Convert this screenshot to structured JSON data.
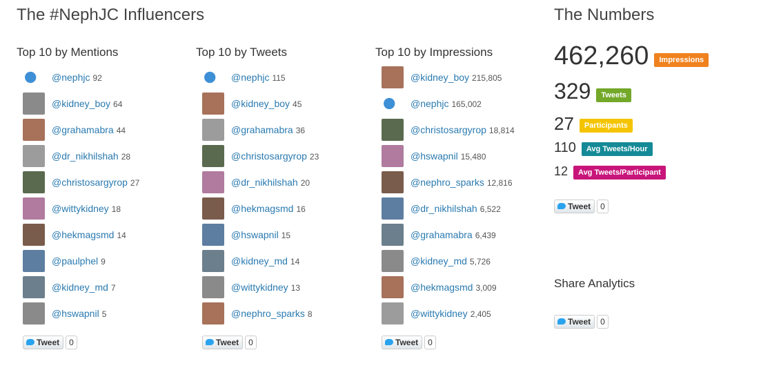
{
  "title": "The #NephJC Influencers",
  "columns": [
    {
      "heading": "Top 10 by Mentions",
      "items": [
        {
          "handle": "@nephjc",
          "count": "92"
        },
        {
          "handle": "@kidney_boy",
          "count": "64"
        },
        {
          "handle": "@grahamabra",
          "count": "44"
        },
        {
          "handle": "@dr_nikhilshah",
          "count": "28"
        },
        {
          "handle": "@christosargyrop",
          "count": "27"
        },
        {
          "handle": "@wittykidney",
          "count": "18"
        },
        {
          "handle": "@hekmagsmd",
          "count": "14"
        },
        {
          "handle": "@paulphel",
          "count": "9"
        },
        {
          "handle": "@kidney_md",
          "count": "7"
        },
        {
          "handle": "@hswapnil",
          "count": "5"
        }
      ],
      "tweet_button": {
        "label": "Tweet",
        "count": "0"
      }
    },
    {
      "heading": "Top 10 by Tweets",
      "items": [
        {
          "handle": "@nephjc",
          "count": "115"
        },
        {
          "handle": "@kidney_boy",
          "count": "45"
        },
        {
          "handle": "@grahamabra",
          "count": "36"
        },
        {
          "handle": "@christosargyrop",
          "count": "23"
        },
        {
          "handle": "@dr_nikhilshah",
          "count": "20"
        },
        {
          "handle": "@hekmagsmd",
          "count": "16"
        },
        {
          "handle": "@hswapnil",
          "count": "15"
        },
        {
          "handle": "@kidney_md",
          "count": "14"
        },
        {
          "handle": "@wittykidney",
          "count": "13"
        },
        {
          "handle": "@nephro_sparks",
          "count": "8"
        }
      ],
      "tweet_button": {
        "label": "Tweet",
        "count": "0"
      }
    },
    {
      "heading": "Top 10 by Impressions",
      "items": [
        {
          "handle": "@kidney_boy",
          "count": "215,805"
        },
        {
          "handle": "@nephjc",
          "count": "165,002"
        },
        {
          "handle": "@christosargyrop",
          "count": "18,814"
        },
        {
          "handle": "@hswapnil",
          "count": "15,480"
        },
        {
          "handle": "@nephro_sparks",
          "count": "12,816"
        },
        {
          "handle": "@dr_nikhilshah",
          "count": "6,522"
        },
        {
          "handle": "@grahamabra",
          "count": "6,439"
        },
        {
          "handle": "@kidney_md",
          "count": "5,726"
        },
        {
          "handle": "@hekmagsmd",
          "count": "3,009"
        },
        {
          "handle": "@wittykidney",
          "count": "2,405"
        }
      ],
      "tweet_button": {
        "label": "Tweet",
        "count": "0"
      }
    }
  ],
  "numbers": {
    "heading": "The Numbers",
    "stats": [
      {
        "value": "462,260",
        "label": "Impressions"
      },
      {
        "value": "329",
        "label": "Tweets"
      },
      {
        "value": "27",
        "label": "Participants"
      },
      {
        "value": "110",
        "label": "Avg Tweets/Hour"
      },
      {
        "value": "12",
        "label": "Avg Tweets/Participant"
      }
    ],
    "tweet_button": {
      "label": "Tweet",
      "count": "0"
    }
  },
  "share": {
    "heading": "Share Analytics",
    "tweet_button": {
      "label": "Tweet",
      "count": "0"
    }
  }
}
